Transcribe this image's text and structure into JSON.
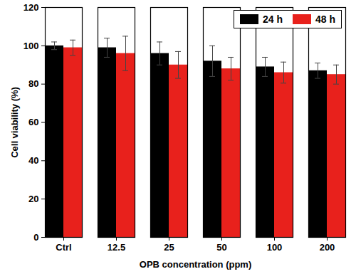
{
  "chart_data": {
    "type": "bar",
    "x_label": "OPB concentration (ppm)",
    "y_label": "Cell viability (%)",
    "categories": [
      "Ctrl",
      "12.5",
      "25",
      "50",
      "100",
      "200"
    ],
    "series": [
      {
        "name": "24 h",
        "color": "#000000",
        "values": [
          100,
          99,
          96,
          92,
          89,
          87
        ],
        "errors": [
          2,
          5,
          6,
          8,
          5,
          4
        ]
      },
      {
        "name": "48 h",
        "color": "#e8211c",
        "values": [
          99,
          96,
          90,
          88,
          86,
          85
        ],
        "errors": [
          4,
          9,
          7,
          6,
          5.5,
          5
        ]
      }
    ],
    "ylim": [
      0,
      120
    ],
    "yticks": [
      0,
      20,
      40,
      60,
      80,
      100,
      120
    ],
    "legend": "top-right"
  }
}
